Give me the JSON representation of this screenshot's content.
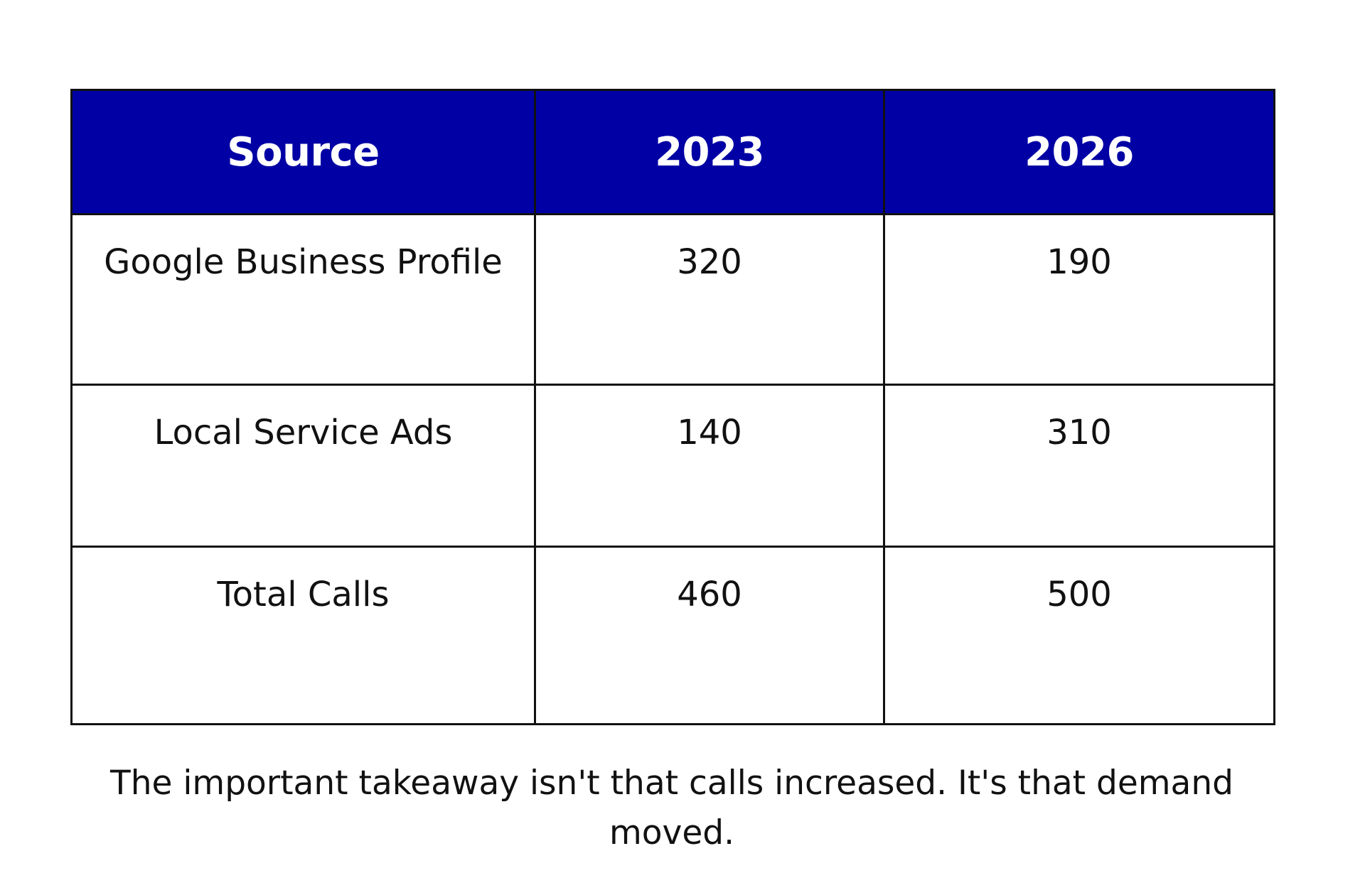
{
  "chart_data": {
    "type": "table",
    "columns": [
      "Source",
      "2023",
      "2026"
    ],
    "rows": [
      [
        "Google Business Profile",
        "320",
        "190"
      ],
      [
        "Local Service Ads",
        "140",
        "310"
      ],
      [
        "Total Calls",
        "460",
        "500"
      ]
    ],
    "header_color": "#0000a4"
  },
  "caption": "The important takeaway isn't that calls increased. It's that demand moved."
}
